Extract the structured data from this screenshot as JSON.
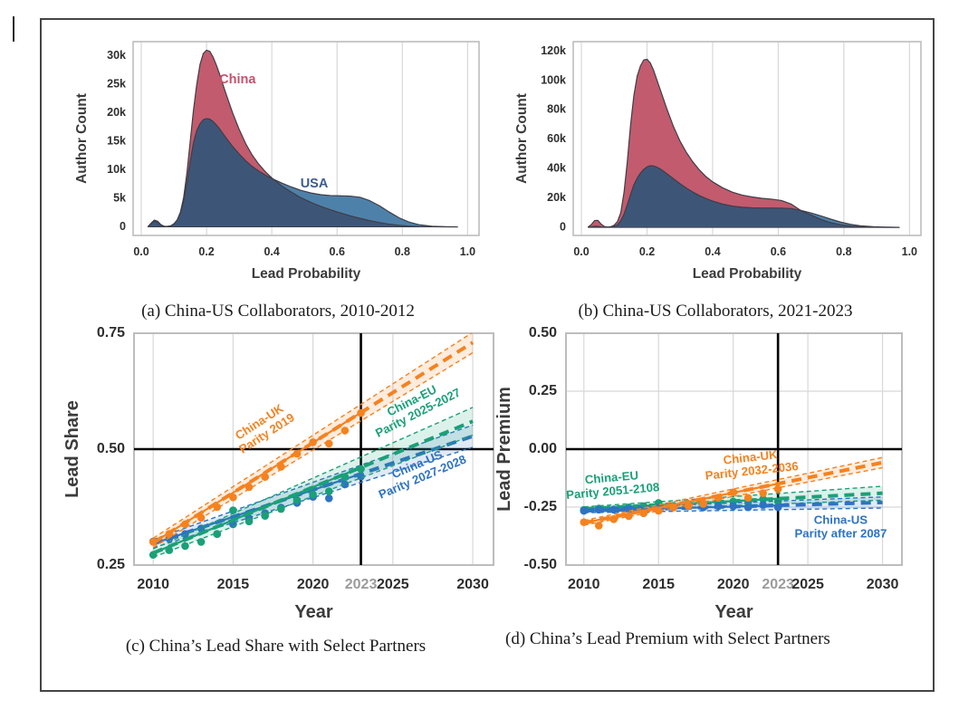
{
  "figure": {
    "captions": {
      "a": "(a) China-US Collaborators, 2010-2012",
      "b": "(b) China-US Collaborators, 2021-2023",
      "c": "(c) China’s Lead Share with Select Partners",
      "d": "(d) China’s Lead Premium with Select Part­ners"
    }
  },
  "colors": {
    "china_red": "#C25B6E",
    "usa_light": "#4E81A9",
    "usa_dark": "#3D5678",
    "kde_stroke": "#3F3D46",
    "orange": "#F5821F",
    "green": "#1AA077",
    "blue": "#2E73C2",
    "grid": "#D8D8D8",
    "plot_border": "#BDBDBD",
    "black_line": "#000000",
    "tick": "#2E2E2E",
    "muted_tick": "#9B9B9B",
    "axis_title": "#3C3C3C",
    "china_label": "#C9506A",
    "usa_label": "#3D5C8F"
  },
  "chart_data": [
    {
      "id": "a",
      "type": "area",
      "xlabel": "Lead Probability",
      "ylabel": "Author Count",
      "xlim": [
        -0.025,
        1.035
      ],
      "ylim": [
        -1500,
        32500
      ],
      "xticks": [
        {
          "v": 0.0,
          "l": "0.0"
        },
        {
          "v": 0.2,
          "l": "0.2"
        },
        {
          "v": 0.4,
          "l": "0.4"
        },
        {
          "v": 0.6,
          "l": "0.6"
        },
        {
          "v": 0.8,
          "l": "0.8"
        },
        {
          "v": 1.0,
          "l": "1.0"
        }
      ],
      "yticks": [
        {
          "v": 0,
          "l": "0"
        },
        {
          "v": 5000,
          "l": "5k"
        },
        {
          "v": 10000,
          "l": "10k"
        },
        {
          "v": 15000,
          "l": "15k"
        },
        {
          "v": 20000,
          "l": "20k"
        },
        {
          "v": 25000,
          "l": "25k"
        },
        {
          "v": 30000,
          "l": "30k"
        }
      ],
      "x": [
        0.02,
        0.03,
        0.04,
        0.05,
        0.06,
        0.07,
        0.08,
        0.09,
        0.1,
        0.11,
        0.12,
        0.13,
        0.14,
        0.15,
        0.16,
        0.17,
        0.18,
        0.19,
        0.2,
        0.21,
        0.22,
        0.23,
        0.24,
        0.25,
        0.26,
        0.28,
        0.3,
        0.32,
        0.34,
        0.36,
        0.38,
        0.4,
        0.43,
        0.46,
        0.49,
        0.52,
        0.55,
        0.58,
        0.61,
        0.64,
        0.67,
        0.7,
        0.73,
        0.76,
        0.79,
        0.82,
        0.85,
        0.89,
        0.93,
        0.97
      ],
      "series": [
        {
          "name": "China",
          "color_key": "china_red",
          "y": [
            0,
            550,
            1050,
            850,
            300,
            100,
            80,
            150,
            500,
            1200,
            2600,
            5200,
            9500,
            15000,
            20500,
            25000,
            28500,
            30400,
            31000,
            30800,
            29800,
            28400,
            26800,
            25000,
            23300,
            20000,
            17100,
            14600,
            12600,
            11000,
            9700,
            8600,
            7200,
            6100,
            5100,
            4300,
            3600,
            3000,
            2450,
            1950,
            1500,
            1100,
            750,
            480,
            280,
            140,
            60,
            20,
            10,
            0
          ]
        },
        {
          "name": "USA",
          "color_key": "usa_light",
          "y": [
            0,
            650,
            1200,
            1000,
            400,
            120,
            100,
            180,
            550,
            1200,
            2500,
            4600,
            7800,
            11500,
            14800,
            16900,
            18100,
            18800,
            19000,
            18900,
            18500,
            17900,
            17200,
            16400,
            15600,
            14100,
            12800,
            11600,
            10600,
            9800,
            9100,
            8500,
            7700,
            7000,
            6400,
            5950,
            5650,
            5500,
            5450,
            5400,
            5200,
            4600,
            3700,
            2600,
            1600,
            850,
            400,
            120,
            30,
            0
          ]
        }
      ],
      "annotations": [
        {
          "text": "China",
          "x": 0.295,
          "y": 25200,
          "color_key": "china_label"
        },
        {
          "text": "USA",
          "x": 0.53,
          "y": 6900,
          "color_key": "usa_label"
        }
      ]
    },
    {
      "id": "b",
      "type": "area",
      "xlabel": "Lead Probability",
      "ylabel": "Author Count",
      "xlim": [
        -0.025,
        1.035
      ],
      "ylim": [
        -5500,
        126500
      ],
      "xticks": [
        {
          "v": 0.0,
          "l": "0.0"
        },
        {
          "v": 0.2,
          "l": "0.2"
        },
        {
          "v": 0.4,
          "l": "0.4"
        },
        {
          "v": 0.6,
          "l": "0.6"
        },
        {
          "v": 0.8,
          "l": "0.8"
        },
        {
          "v": 1.0,
          "l": "1.0"
        }
      ],
      "yticks": [
        {
          "v": 0,
          "l": "0"
        },
        {
          "v": 20000,
          "l": "20k"
        },
        {
          "v": 40000,
          "l": "40k"
        },
        {
          "v": 60000,
          "l": "60k"
        },
        {
          "v": 80000,
          "l": "80k"
        },
        {
          "v": 100000,
          "l": "100k"
        },
        {
          "v": 120000,
          "l": "120k"
        }
      ],
      "x": [
        0.02,
        0.03,
        0.04,
        0.05,
        0.06,
        0.07,
        0.08,
        0.09,
        0.1,
        0.11,
        0.12,
        0.13,
        0.14,
        0.15,
        0.16,
        0.17,
        0.18,
        0.19,
        0.2,
        0.21,
        0.22,
        0.23,
        0.24,
        0.25,
        0.26,
        0.28,
        0.3,
        0.32,
        0.34,
        0.36,
        0.38,
        0.4,
        0.43,
        0.46,
        0.49,
        0.52,
        0.55,
        0.58,
        0.61,
        0.64,
        0.67,
        0.7,
        0.73,
        0.76,
        0.79,
        0.82,
        0.85,
        0.89,
        0.93,
        0.97
      ],
      "series": [
        {
          "name": "China",
          "color_key": "china_red",
          "y": [
            200,
            1800,
            4600,
            4800,
            2200,
            600,
            250,
            500,
            1500,
            4000,
            10000,
            24000,
            45000,
            70000,
            90000,
            103000,
            110000,
            114000,
            114500,
            112000,
            107000,
            100500,
            94000,
            87500,
            81000,
            69000,
            59000,
            51000,
            44500,
            39000,
            34500,
            31000,
            27000,
            24000,
            22000,
            20700,
            19800,
            19200,
            18300,
            15800,
            11300,
            8400,
            5400,
            3200,
            1800,
            900,
            450,
            180,
            60,
            0
          ]
        },
        {
          "name": "USA",
          "color_key": "usa_light",
          "y": [
            50,
            350,
            750,
            700,
            300,
            100,
            100,
            200,
            700,
            1800,
            4500,
            9000,
            15500,
            22500,
            29000,
            33500,
            37000,
            39500,
            41200,
            42000,
            41800,
            41000,
            39800,
            38300,
            36600,
            33200,
            29800,
            26700,
            24000,
            21600,
            19600,
            17900,
            15900,
            14500,
            13700,
            13300,
            13200,
            13200,
            13100,
            12800,
            11500,
            9800,
            7800,
            5600,
            3600,
            2100,
            1100,
            450,
            150,
            0
          ]
        }
      ],
      "annotations": []
    },
    {
      "id": "c",
      "type": "scatter",
      "xlabel": "Year",
      "ylabel": "Lead Share",
      "xlim": [
        2008.8,
        2031.3
      ],
      "ylim": [
        0.25,
        0.75
      ],
      "xticks": [
        {
          "v": 2010,
          "l": "2010"
        },
        {
          "v": 2015,
          "l": "2015"
        },
        {
          "v": 2020,
          "l": "2020"
        },
        {
          "v": 2023,
          "l": "2023",
          "muted": true
        },
        {
          "v": 2025,
          "l": "2025"
        },
        {
          "v": 2030,
          "l": "2030"
        }
      ],
      "yticks": [
        {
          "v": 0.25,
          "l": "0.25"
        },
        {
          "v": 0.5,
          "l": "0.50"
        },
        {
          "v": 0.75,
          "l": "0.75"
        }
      ],
      "grid_x": [
        2010,
        2015,
        2020,
        2025,
        2030
      ],
      "grid_y": [],
      "ref_hline": 0.5,
      "ref_vline": 2023,
      "years": [
        2010,
        2011,
        2012,
        2013,
        2014,
        2015,
        2016,
        2017,
        2018,
        2019,
        2020,
        2021,
        2022,
        2023
      ],
      "series": [
        {
          "name": "China-US",
          "color_key": "blue",
          "values": [
            0.301,
            0.307,
            0.317,
            0.329,
            0.317,
            0.338,
            0.351,
            0.362,
            0.374,
            0.384,
            0.397,
            0.394,
            0.424,
            0.441
          ],
          "fit": {
            "y2010": 0.296,
            "y2030": 0.528
          },
          "ci": [
            0.009,
            0.024
          ],
          "annotation": {
            "lines": [
              "China-US",
              "Parity 2027-2028"
            ],
            "x": 2026.7,
            "y": 0.452,
            "rotate": -23
          }
        },
        {
          "name": "China-EU",
          "color_key": "green",
          "values": [
            0.272,
            0.282,
            0.291,
            0.3,
            0.317,
            0.368,
            0.344,
            0.356,
            0.371,
            0.39,
            0.402,
            0.409,
            0.44,
            0.457
          ],
          "fit": {
            "y2010": 0.276,
            "y2030": 0.56
          },
          "ci": [
            0.009,
            0.03
          ],
          "annotation": {
            "lines": [
              "China-EU",
              "Parity 2025-2027"
            ],
            "x": 2026.4,
            "y": 0.59,
            "rotate": -27
          }
        },
        {
          "name": "China-UK",
          "color_key": "orange",
          "values": [
            0.3,
            0.317,
            0.338,
            0.352,
            0.375,
            0.396,
            0.418,
            0.44,
            0.462,
            0.49,
            0.515,
            0.512,
            0.54,
            0.578
          ],
          "fit": {
            "y2010": 0.298,
            "y2030": 0.73
          },
          "ci": [
            0.01,
            0.022
          ],
          "annotation": {
            "lines": [
              "China-UK",
              "Parity 2019"
            ],
            "x": 2016.9,
            "y": 0.545,
            "rotate": -33
          }
        }
      ]
    },
    {
      "id": "d",
      "type": "scatter",
      "xlabel": "Year",
      "ylabel": "Lead Premium",
      "xlim": [
        2008.8,
        2031.3
      ],
      "ylim": [
        -0.5,
        0.5
      ],
      "xticks": [
        {
          "v": 2010,
          "l": "2010"
        },
        {
          "v": 2015,
          "l": "2015"
        },
        {
          "v": 2020,
          "l": "2020"
        },
        {
          "v": 2023,
          "l": "2023",
          "muted": true
        },
        {
          "v": 2025,
          "l": "2025"
        },
        {
          "v": 2030,
          "l": "2030"
        }
      ],
      "yticks": [
        {
          "v": -0.5,
          "l": "-0.50"
        },
        {
          "v": -0.25,
          "l": "-0.25"
        },
        {
          "v": 0.0,
          "l": "0.00"
        },
        {
          "v": 0.25,
          "l": "0.25"
        },
        {
          "v": 0.5,
          "l": "0.50"
        }
      ],
      "grid_x": [
        2010,
        2015,
        2020,
        2025,
        2030
      ],
      "grid_y": [
        -0.25,
        0.25
      ],
      "ref_hline": 0.0,
      "ref_vline": 2023,
      "years": [
        2010,
        2011,
        2012,
        2013,
        2014,
        2015,
        2016,
        2017,
        2018,
        2019,
        2020,
        2021,
        2022,
        2023
      ],
      "series": [
        {
          "name": "China-EU",
          "color_key": "green",
          "values": [
            -0.262,
            -0.256,
            -0.26,
            -0.251,
            -0.246,
            -0.232,
            -0.245,
            -0.24,
            -0.236,
            -0.23,
            -0.226,
            -0.231,
            -0.216,
            -0.226
          ],
          "fit": {
            "y2010": -0.258,
            "y2030": -0.19
          },
          "ci": [
            0.009,
            0.03
          ],
          "annotation": {
            "lines": [
              "China-EU",
              "Parity 2051-2108"
            ],
            "x": 2011.9,
            "y": -0.155,
            "rotate": -5
          }
        },
        {
          "name": "China-US",
          "color_key": "blue",
          "values": [
            -0.266,
            -0.261,
            -0.261,
            -0.256,
            -0.276,
            -0.251,
            -0.251,
            -0.246,
            -0.251,
            -0.246,
            -0.246,
            -0.251,
            -0.241,
            -0.251
          ],
          "fit": {
            "y2010": -0.266,
            "y2030": -0.23
          },
          "ci": [
            0.008,
            0.024
          ],
          "annotation": {
            "lines": [
              "China-US",
              "Parity after 2087"
            ],
            "x": 2027.2,
            "y": -0.338,
            "rotate": 0
          }
        },
        {
          "name": "China-UK",
          "color_key": "orange",
          "values": [
            -0.315,
            -0.33,
            -0.302,
            -0.289,
            -0.276,
            -0.266,
            -0.252,
            -0.245,
            -0.236,
            -0.21,
            -0.186,
            -0.21,
            -0.19,
            -0.172
          ],
          "fit": {
            "y2010": -0.318,
            "y2030": -0.058
          },
          "ci": [
            0.01,
            0.022
          ],
          "annotation": {
            "lines": [
              "China-UK",
              "Parity 2032-2036"
            ],
            "x": 2021.2,
            "y": -0.068,
            "rotate": -6
          }
        }
      ]
    }
  ]
}
